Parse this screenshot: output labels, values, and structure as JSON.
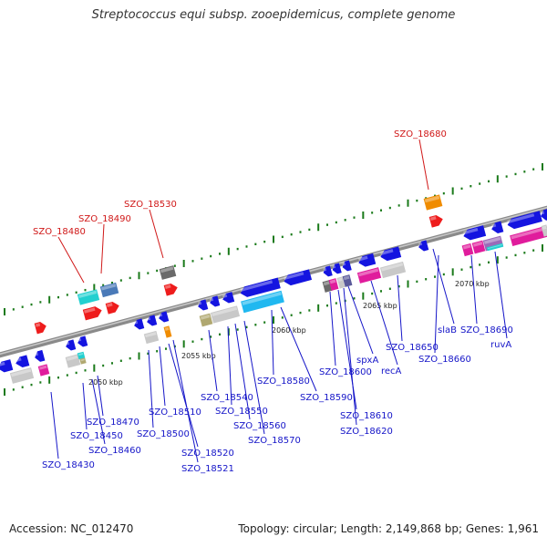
{
  "title": "Streptococcus equi subsp. zooepidemicus, complete genome",
  "footer": {
    "accession": "Accession: NC_012470",
    "summary": "Topology: circular; Length: 2,149,868 bp; Genes: 1,961"
  },
  "colors": {
    "backbone": "#8a8a8a",
    "tick": "#1a7a1a",
    "blue_label": "#1515c8",
    "red_label": "#d01818",
    "gene_blue": "#1414e0",
    "gene_red": "#ee1c1c",
    "gene_cyan": "#22d0d0",
    "gene_steel": "#4a7ab8",
    "gene_gray": "#c8c8c8",
    "gene_dark": "#6a6a6a",
    "gene_orange": "#f08c00",
    "gene_magenta": "#e01c9c",
    "gene_olive": "#b0a870",
    "gene_sky": "#20b8f0"
  },
  "scale_labels": [
    "2050 kbp",
    "2055 kbp",
    "2060 kbp",
    "2065 kbp",
    "2070 kbp"
  ],
  "gene_labels_blue": [
    "SZO_18430",
    "SZO_18450",
    "SZO_18460",
    "SZO_18470",
    "SZO_18500",
    "SZO_18510",
    "SZO_18520",
    "SZO_18521",
    "SZO_18540",
    "SZO_18550",
    "SZO_18560",
    "SZO_18570",
    "SZO_18580",
    "SZO_18590",
    "SZO_18600",
    "SZO_18610",
    "SZO_18620",
    "spxA",
    "recA",
    "SZO_18650",
    "slaB",
    "SZO_18660",
    "SZO_18690",
    "ruvA"
  ],
  "gene_labels_red": [
    "SZO_18480",
    "SZO_18490",
    "SZO_18530",
    "SZO_18680"
  ]
}
